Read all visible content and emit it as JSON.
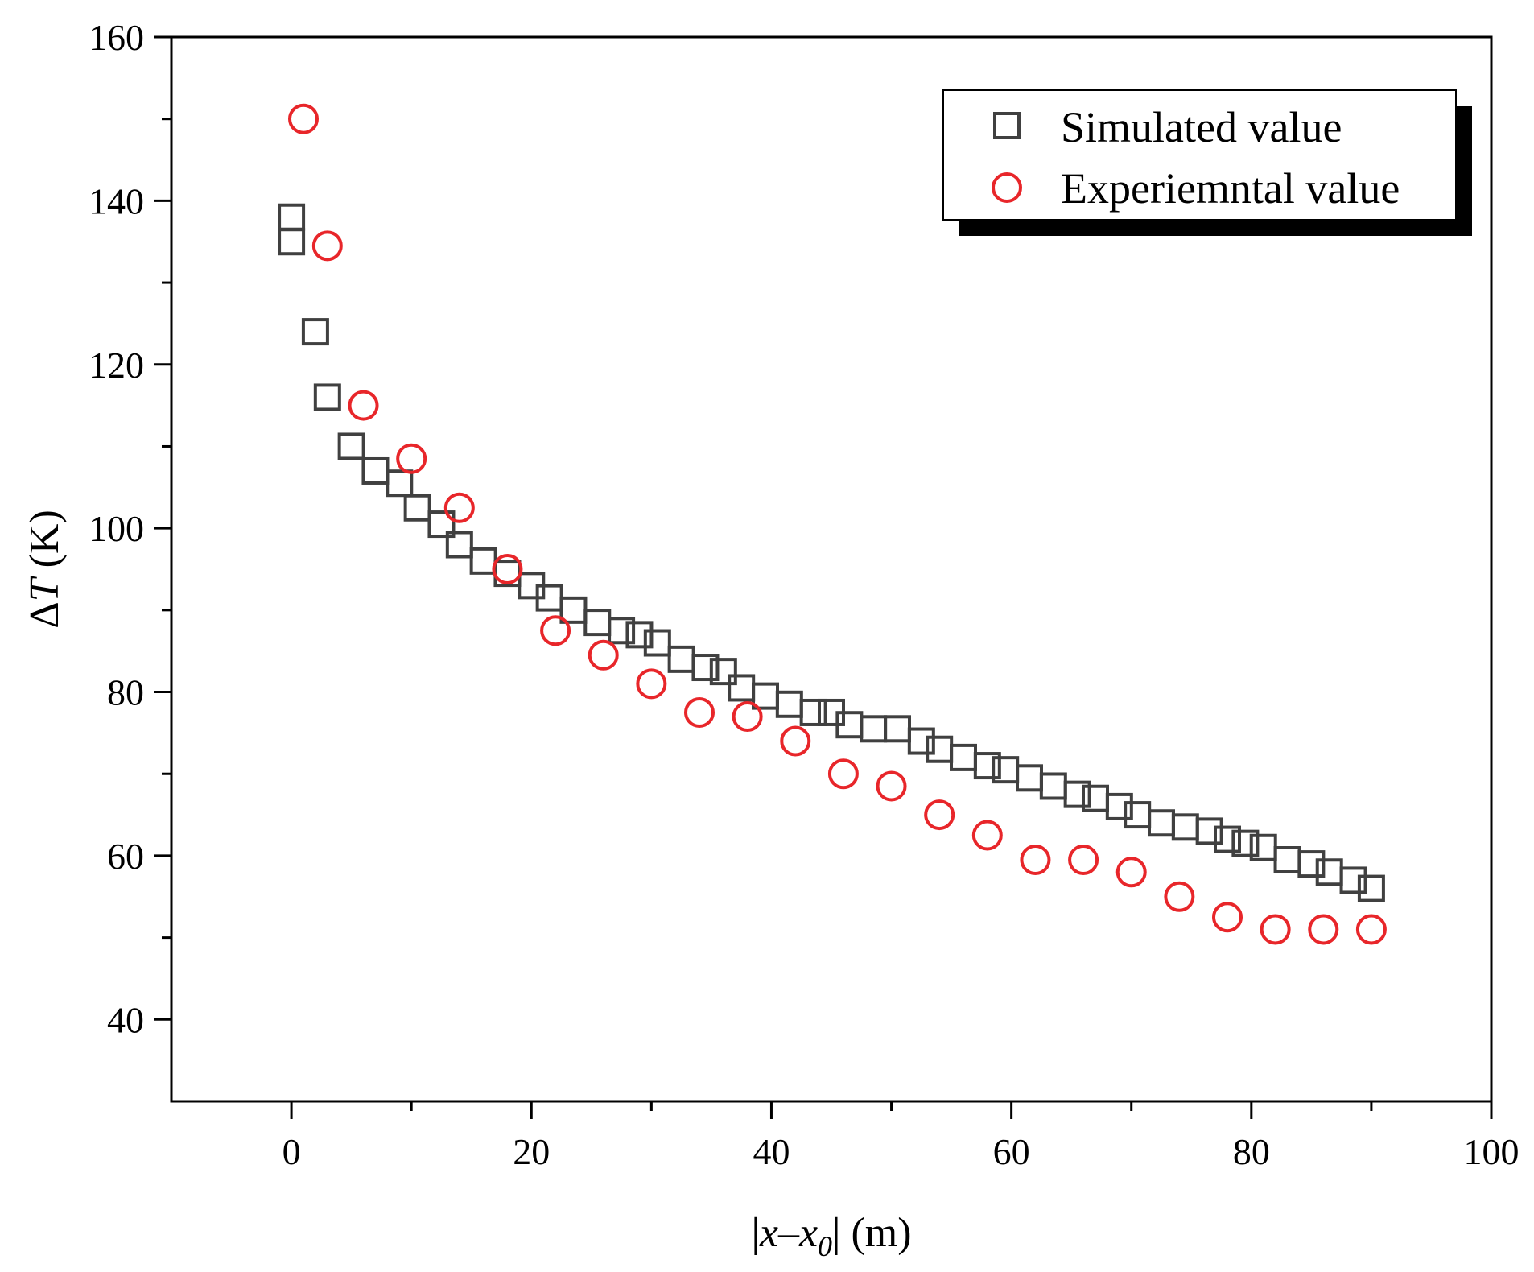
{
  "chart_data": {
    "type": "scatter",
    "xlabel": {
      "prefix": "|",
      "x": "x",
      "dash": "–",
      "x0": "x",
      "sub": "0",
      "suffix": "| (m)"
    },
    "ylabel": {
      "delta": "Δ",
      "T": "T",
      "unit": " (K)"
    },
    "xlim": [
      -10,
      100
    ],
    "ylim": [
      30,
      160
    ],
    "x_ticks": [
      0,
      20,
      40,
      60,
      80,
      100
    ],
    "x_tick_labels": [
      "0",
      "20",
      "40",
      "60",
      "80",
      "100"
    ],
    "x_minor_ticks": [
      10,
      30,
      50,
      70,
      90
    ],
    "y_ticks": [
      40,
      60,
      80,
      100,
      120,
      140,
      160
    ],
    "y_tick_labels": [
      "40",
      "60",
      "80",
      "100",
      "120",
      "140",
      "160"
    ],
    "y_minor_ticks": [
      50,
      70,
      90,
      110,
      130,
      150
    ],
    "grid": false,
    "legend": {
      "position": "top-right",
      "entries": [
        "Simulated value",
        "Experiemntal value"
      ]
    },
    "series": [
      {
        "name": "Simulated value",
        "marker": "square",
        "color": "#404040",
        "x": [
          0,
          0,
          2,
          3,
          5,
          7,
          9,
          10.5,
          12.5,
          14,
          16,
          18,
          20,
          21.5,
          23.5,
          25.5,
          27.5,
          29,
          30.5,
          32.5,
          34.5,
          36,
          37.5,
          39.5,
          41.5,
          43.5,
          45,
          46.5,
          48.5,
          50.5,
          52.5,
          54,
          56,
          58,
          59.5,
          61.5,
          63.5,
          65.5,
          67,
          69,
          70.5,
          72.5,
          74.5,
          76.5,
          78,
          79.5,
          81,
          83,
          85,
          86.5,
          88.5,
          90
        ],
        "y": [
          138,
          135,
          124,
          116,
          110,
          107,
          105.5,
          102.5,
          100.5,
          98,
          96,
          94.5,
          93,
          91.5,
          90,
          88.5,
          87.5,
          87,
          86,
          84,
          83,
          82.5,
          80.5,
          79.5,
          78.5,
          77.5,
          77.5,
          76,
          75.5,
          75.5,
          74,
          73,
          72,
          71,
          70.5,
          69.5,
          68.5,
          67.5,
          67,
          66,
          65,
          64,
          63.5,
          63,
          62,
          61.5,
          61,
          59.5,
          59,
          58,
          57,
          56
        ]
      },
      {
        "name": "Experiemntal value",
        "marker": "circle",
        "color": "#e8262a",
        "x": [
          1,
          3,
          6,
          10,
          14,
          18,
          22,
          26,
          30,
          34,
          38,
          42,
          46,
          50,
          54,
          58,
          62,
          66,
          70,
          74,
          78,
          82,
          86,
          90
        ],
        "y": [
          150,
          134.5,
          115,
          108.5,
          102.5,
          95,
          87.5,
          84.5,
          81,
          77.5,
          77,
          74,
          70,
          68.5,
          65,
          62.5,
          59.5,
          59.5,
          58,
          55,
          52.5,
          51,
          51,
          51
        ]
      }
    ]
  }
}
